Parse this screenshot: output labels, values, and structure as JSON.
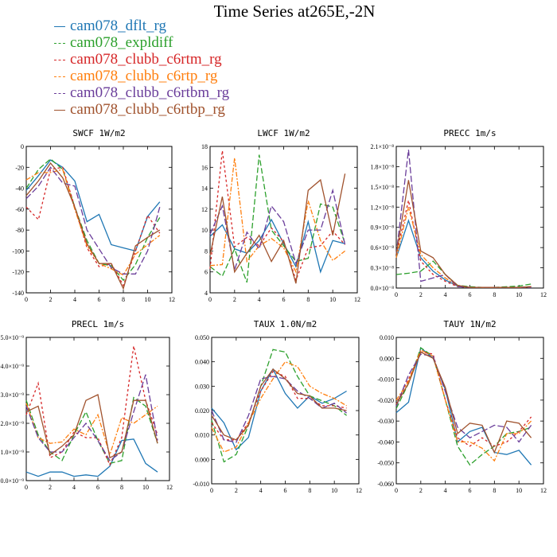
{
  "title": "Time Series at265E,-2N",
  "series_styles": [
    {
      "name": "cam078_dflt_rg",
      "color": "#1f77b4",
      "dash": ""
    },
    {
      "name": "cam078_expldiff",
      "color": "#2ca02c",
      "dash": "7,3"
    },
    {
      "name": "cam078_clubb_c6rtm_rg",
      "color": "#d62728",
      "dash": "3,3"
    },
    {
      "name": "cam078_clubb_c6rtp_rg",
      "color": "#ff7f0e",
      "dash": "6,2,2,2"
    },
    {
      "name": "cam078_clubb_c6rtbm_rg",
      "color": "#6a3d9a",
      "dash": "8,3"
    },
    {
      "name": "cam078_clubb_c6rtbp_rg",
      "color": "#a0522d",
      "dash": ""
    }
  ],
  "chart_data": [
    {
      "type": "line",
      "title": "SWCF   1W/m2",
      "x": [
        0,
        1,
        2,
        3,
        4,
        5,
        6,
        7,
        8,
        9,
        10,
        11
      ],
      "xlim": [
        0,
        12
      ],
      "xticks": [
        "0",
        "2",
        "4",
        "6",
        "8",
        "10",
        "12"
      ],
      "ylim": [
        -140,
        0
      ],
      "yticks": [
        "-140",
        "-120",
        "-100",
        "-80",
        "-60",
        "-40",
        "-20",
        "0"
      ],
      "series": [
        {
          "name": "cam078_dflt_rg",
          "values": [
            -42,
            -28,
            -13,
            -20,
            -33,
            -72,
            -65,
            -94,
            -97,
            -100,
            -67,
            -53
          ]
        },
        {
          "name": "cam078_expldiff",
          "values": [
            -40,
            -22,
            -12,
            -22,
            -58,
            -90,
            -112,
            -114,
            -128,
            -113,
            -87,
            -68
          ]
        },
        {
          "name": "cam078_clubb_c6rtm_rg",
          "values": [
            -58,
            -70,
            -22,
            -20,
            -58,
            -97,
            -115,
            -112,
            -133,
            -100,
            -66,
            -83
          ]
        },
        {
          "name": "cam078_clubb_c6rtp_rg",
          "values": [
            -32,
            -25,
            -25,
            -22,
            -60,
            -95,
            -112,
            -117,
            -123,
            -103,
            -94,
            -85
          ]
        },
        {
          "name": "cam078_clubb_c6rtbm_rg",
          "values": [
            -50,
            -38,
            -20,
            -35,
            -38,
            -80,
            -98,
            -116,
            -122,
            -122,
            -100,
            -58
          ]
        },
        {
          "name": "cam078_clubb_c6rtbp_rg",
          "values": [
            -47,
            -33,
            -16,
            -30,
            -58,
            -93,
            -112,
            -112,
            -136,
            -95,
            -87,
            -80
          ]
        }
      ]
    },
    {
      "type": "line",
      "title": "LWCF   1W/m2",
      "x": [
        0,
        1,
        2,
        3,
        4,
        5,
        6,
        7,
        8,
        9,
        10,
        11
      ],
      "xlim": [
        0,
        12
      ],
      "xticks": [
        "0",
        "2",
        "4",
        "6",
        "8",
        "10",
        "12"
      ],
      "ylim": [
        4,
        18
      ],
      "yticks": [
        "4",
        "6",
        "8",
        "10",
        "12",
        "14",
        "16",
        "18"
      ],
      "series": [
        {
          "name": "cam078_dflt_rg",
          "values": [
            9.4,
            10.5,
            8.2,
            7.8,
            9.0,
            11.0,
            8.7,
            6.5,
            10.8,
            6.0,
            9.0,
            8.7
          ]
        },
        {
          "name": "cam078_expldiff",
          "values": [
            6.5,
            5.6,
            8.2,
            5.0,
            17.2,
            10.0,
            8.5,
            7.0,
            7.3,
            12.5,
            12.2,
            8.7
          ]
        },
        {
          "name": "cam078_clubb_c6rtm_rg",
          "values": [
            6.3,
            17.6,
            8.4,
            9.3,
            8.5,
            10.2,
            8.9,
            5.2,
            8.3,
            8.5,
            9.9,
            8.6
          ]
        },
        {
          "name": "cam078_clubb_c6rtp_rg",
          "values": [
            6.6,
            6.7,
            16.9,
            7.0,
            8.5,
            9.2,
            8.3,
            6.0,
            12.8,
            9.0,
            7.1,
            8.0
          ]
        },
        {
          "name": "cam078_clubb_c6rtbm_rg",
          "values": [
            9.6,
            12.3,
            6.2,
            9.8,
            8.2,
            12.3,
            10.8,
            6.8,
            10.0,
            10.0,
            13.8,
            8.6
          ]
        },
        {
          "name": "cam078_clubb_c6rtbp_rg",
          "values": [
            7.6,
            13.2,
            6.0,
            7.8,
            9.5,
            7.0,
            9.0,
            4.9,
            13.8,
            14.8,
            9.5,
            15.4
          ]
        }
      ]
    },
    {
      "type": "line",
      "title": "PRECC   1m/s",
      "x": [
        0,
        1,
        2,
        3,
        4,
        5,
        6,
        7,
        8,
        9,
        10,
        11
      ],
      "xlim": [
        0,
        12
      ],
      "xticks": [
        "0",
        "2",
        "4",
        "6",
        "8",
        "10",
        "12"
      ],
      "ylim": [
        0,
        2.1
      ],
      "ylim_note": "x10^-8",
      "yticks": [
        "0.0×10⁻⁸",
        "0.3×10⁻⁸",
        "0.6×10⁻⁸",
        "0.9×10⁻⁸",
        "1.2×10⁻⁸",
        "1.5×10⁻⁸",
        "1.8×10⁻⁸",
        "2.1×10⁻⁸"
      ],
      "series": [
        {
          "name": "cam078_dflt_rg",
          "values": [
            0.45,
            1.0,
            0.45,
            0.25,
            0.12,
            0.03,
            0.01,
            0.01,
            0.01,
            0.01,
            0.01,
            0.02
          ]
        },
        {
          "name": "cam078_expldiff",
          "values": [
            0.2,
            0.22,
            0.25,
            0.4,
            0.2,
            0.04,
            0.02,
            0.01,
            0.01,
            0.02,
            0.03,
            0.06
          ]
        },
        {
          "name": "cam078_clubb_c6rtm_rg",
          "values": [
            0.5,
            1.3,
            0.4,
            0.2,
            0.1,
            0.02,
            0.01,
            0.01,
            0.01,
            0.01,
            0.01,
            0.01
          ]
        },
        {
          "name": "cam078_clubb_c6rtp_rg",
          "values": [
            0.45,
            1.2,
            0.5,
            0.3,
            0.15,
            0.03,
            0.01,
            0.01,
            0.01,
            0.01,
            0.01,
            0.02
          ]
        },
        {
          "name": "cam078_clubb_c6rtbm_rg",
          "values": [
            0.5,
            2.05,
            0.1,
            0.15,
            0.2,
            0.02,
            0.01,
            0.01,
            0.01,
            0.01,
            0.01,
            0.01
          ]
        },
        {
          "name": "cam078_clubb_c6rtbp_rg",
          "values": [
            0.5,
            1.6,
            0.55,
            0.45,
            0.2,
            0.04,
            0.01,
            0.01,
            0.01,
            0.01,
            0.01,
            0.02
          ]
        }
      ]
    },
    {
      "type": "line",
      "title": "PRECL   1m/s",
      "x": [
        0,
        1,
        2,
        3,
        4,
        5,
        6,
        7,
        8,
        9,
        10,
        11
      ],
      "xlim": [
        0,
        12
      ],
      "xticks": [
        "0",
        "2",
        "4",
        "6",
        "8",
        "10",
        "12"
      ],
      "ylim": [
        0,
        5
      ],
      "yticks": [
        "0.0×10⁻⁹",
        "1.0×10⁻⁹",
        "2.0×10⁻⁹",
        "3.0×10⁻⁹",
        "4.0×10⁻⁹",
        "5.0×10⁻⁹"
      ],
      "series": [
        {
          "name": "cam078_dflt_rg",
          "values": [
            0.3,
            0.15,
            0.3,
            0.3,
            0.15,
            0.2,
            0.15,
            0.5,
            1.4,
            1.45,
            0.6,
            0.3
          ]
        },
        {
          "name": "cam078_expldiff",
          "values": [
            2.8,
            1.6,
            1.0,
            0.7,
            1.6,
            2.4,
            1.4,
            0.6,
            0.7,
            2.9,
            2.6,
            1.3
          ]
        },
        {
          "name": "cam078_clubb_c6rtm_rg",
          "values": [
            2.3,
            3.4,
            0.8,
            1.0,
            1.7,
            1.5,
            1.5,
            0.55,
            1.5,
            4.7,
            2.8,
            1.6
          ]
        },
        {
          "name": "cam078_clubb_c6rtp_rg",
          "values": [
            2.7,
            1.5,
            1.3,
            1.35,
            1.8,
            1.6,
            2.3,
            0.9,
            2.2,
            2.0,
            2.3,
            2.6
          ]
        },
        {
          "name": "cam078_clubb_c6rtbm_rg",
          "values": [
            2.6,
            1.5,
            1.0,
            1.0,
            1.5,
            2.0,
            1.4,
            0.7,
            1.0,
            2.4,
            3.7,
            1.4
          ]
        },
        {
          "name": "cam078_clubb_c6rtbp_rg",
          "values": [
            2.4,
            2.6,
            0.9,
            1.2,
            1.6,
            2.8,
            3.0,
            0.8,
            1.0,
            2.8,
            2.8,
            1.3
          ]
        }
      ]
    },
    {
      "type": "line",
      "title": "TAUX   1.0N/m2",
      "x": [
        0,
        1,
        2,
        3,
        4,
        5,
        6,
        7,
        8,
        9,
        10,
        11
      ],
      "xlim": [
        0,
        12
      ],
      "xticks": [
        "0",
        "2",
        "4",
        "6",
        "8",
        "10",
        "12"
      ],
      "ylim": [
        -0.01,
        0.05
      ],
      "yticks": [
        "-0.010",
        "0.000",
        "0.010",
        "0.020",
        "0.030",
        "0.040",
        "0.050"
      ],
      "series": [
        {
          "name": "cam078_dflt_rg",
          "values": [
            0.021,
            0.015,
            0.004,
            0.009,
            0.028,
            0.037,
            0.027,
            0.021,
            0.026,
            0.023,
            0.025,
            0.028
          ]
        },
        {
          "name": "cam078_expldiff",
          "values": [
            0.016,
            -0.001,
            0.002,
            0.014,
            0.03,
            0.045,
            0.044,
            0.034,
            0.026,
            0.024,
            0.022,
            0.018
          ]
        },
        {
          "name": "cam078_clubb_c6rtm_rg",
          "values": [
            0.015,
            0.008,
            0.008,
            0.015,
            0.028,
            0.036,
            0.034,
            0.025,
            0.025,
            0.022,
            0.022,
            0.021
          ]
        },
        {
          "name": "cam078_clubb_c6rtp_rg",
          "values": [
            0.013,
            0.003,
            0.005,
            0.015,
            0.025,
            0.033,
            0.04,
            0.038,
            0.03,
            0.027,
            0.025,
            0.022
          ]
        },
        {
          "name": "cam078_clubb_c6rtbm_rg",
          "values": [
            0.02,
            0.008,
            0.007,
            0.018,
            0.033,
            0.034,
            0.033,
            0.028,
            0.025,
            0.021,
            0.023,
            0.019
          ]
        },
        {
          "name": "cam078_clubb_c6rtbp_rg",
          "values": [
            0.018,
            0.01,
            0.008,
            0.014,
            0.03,
            0.037,
            0.033,
            0.027,
            0.026,
            0.021,
            0.021,
            0.02
          ]
        }
      ]
    },
    {
      "type": "line",
      "title": "TAUY   1N/m2",
      "x": [
        0,
        1,
        2,
        3,
        4,
        5,
        6,
        7,
        8,
        9,
        10,
        11
      ],
      "xlim": [
        0,
        12
      ],
      "xticks": [
        "0",
        "2",
        "4",
        "6",
        "8",
        "10",
        "12"
      ],
      "ylim": [
        -0.06,
        0.01
      ],
      "yticks": [
        "-0.060",
        "-0.050",
        "-0.040",
        "-0.030",
        "-0.020",
        "-0.010",
        "0.000",
        "0.010"
      ],
      "series": [
        {
          "name": "cam078_dflt_rg",
          "values": [
            -0.026,
            -0.021,
            0.005,
            0.0,
            -0.015,
            -0.04,
            -0.035,
            -0.033,
            -0.045,
            -0.046,
            -0.044,
            -0.051
          ]
        },
        {
          "name": "cam078_expldiff",
          "values": [
            -0.024,
            -0.012,
            0.005,
            0.001,
            -0.02,
            -0.042,
            -0.051,
            -0.046,
            -0.042,
            -0.036,
            -0.035,
            -0.033
          ]
        },
        {
          "name": "cam078_clubb_c6rtm_rg",
          "values": [
            -0.022,
            -0.01,
            0.003,
            0.002,
            -0.02,
            -0.038,
            -0.042,
            -0.038,
            -0.042,
            -0.04,
            -0.035,
            -0.028
          ]
        },
        {
          "name": "cam078_clubb_c6rtp_rg",
          "values": [
            -0.02,
            -0.011,
            0.004,
            0.001,
            -0.02,
            -0.04,
            -0.04,
            -0.043,
            -0.049,
            -0.036,
            -0.036,
            -0.03
          ]
        },
        {
          "name": "cam078_clubb_c6rtbm_rg",
          "values": [
            -0.023,
            -0.008,
            0.002,
            0.001,
            -0.016,
            -0.033,
            -0.038,
            -0.035,
            -0.032,
            -0.033,
            -0.04,
            -0.032
          ]
        },
        {
          "name": "cam078_clubb_c6rtbp_rg",
          "values": [
            -0.022,
            -0.012,
            0.003,
            0.0,
            -0.014,
            -0.036,
            -0.031,
            -0.032,
            -0.045,
            -0.03,
            -0.031,
            -0.038
          ]
        }
      ]
    }
  ]
}
